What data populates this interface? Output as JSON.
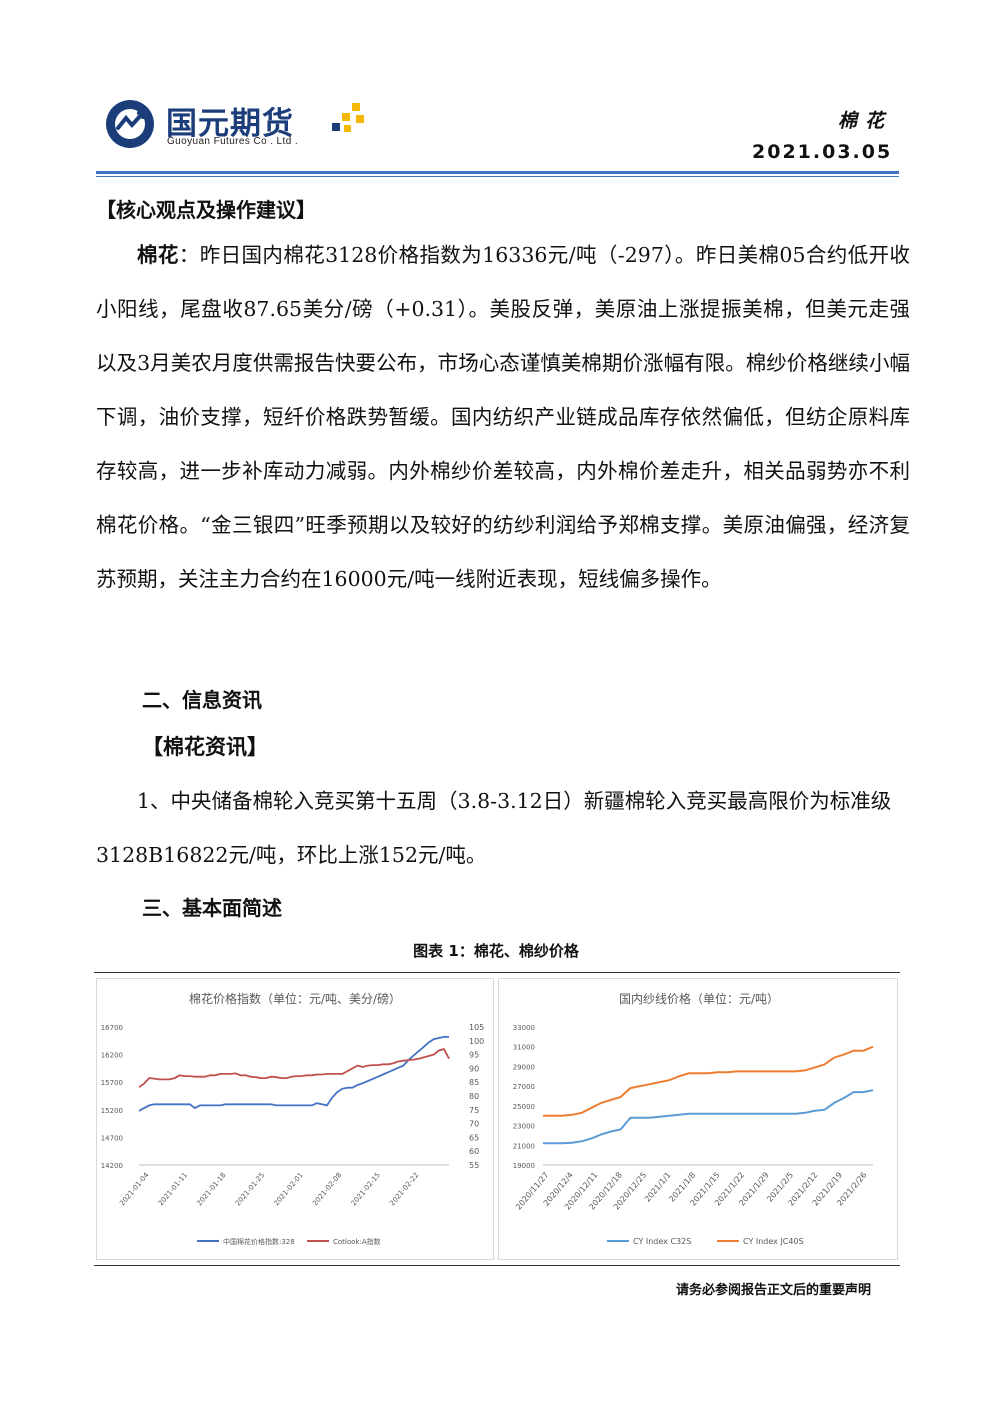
{
  "header": {
    "company_cn": "国元期货",
    "company_en": "Guoyuan Futures Co . Ltd .",
    "product": "棉花",
    "date": "2021.03.05",
    "brand_color": "#1b3e7a",
    "accent_color": "#f5b800"
  },
  "section1": {
    "title": "【核心观点及操作建议】",
    "lead": "棉花",
    "body": "：昨日国内棉花3128价格指数为16336元/吨（-297）。昨日美棉05合约低开收小阳线，尾盘收87.65美分/磅（+0.31）。美股反弹，美原油上涨提振美棉，但美元走强以及3月美农月度供需报告快要公布，市场心态谨慎美棉期价涨幅有限。棉纱价格继续小幅下调，油价支撑，短纤价格跌势暂缓。国内纺织产业链成品库存依然偏低，但纺企原料库存较高，进一步补库动力减弱。内外棉纱价差较高，内外棉价差走升，相关品弱势亦不利棉花价格。“金三银四”旺季预期以及较好的纺纱利润给予郑棉支撑。美原油偏强，经济复苏预期，关注主力合约在16000元/吨一线附近表现，短线偏多操作。"
  },
  "section2": {
    "title": "二、信息资讯",
    "subtitle": "【棉花资讯】",
    "item1": "1、中央储备棉轮入竞买第十五周（3.8-3.12日）新疆棉轮入竞买最高限价为标准级3128B16822元/吨，环比上涨152元/吨。"
  },
  "section3": {
    "title": "三、基本面简述"
  },
  "figure_caption": "图表 1：棉花、棉纱价格",
  "footer": "请务必参阅报告正文后的重要声明",
  "chart_data": [
    {
      "type": "line",
      "title": "棉花价格指数（单位：元/吨、美分/磅）",
      "x_ticks": [
        "2021-01-04",
        "2021-01-11",
        "2021-01-18",
        "2021-01-25",
        "2021-02-01",
        "2021-02-08",
        "2021-02-15",
        "2021-02-22"
      ],
      "ylim_left": [
        14200,
        16700
      ],
      "y_ticks_left": [
        "16700",
        "16200",
        "15700",
        "15200",
        "14700",
        "14200"
      ],
      "ylim_right": [
        55,
        105
      ],
      "y_ticks_right": [
        "105",
        "100",
        "95",
        "90",
        "85",
        "80",
        "75",
        "70",
        "65",
        "60",
        "55"
      ],
      "series": [
        {
          "name": "中国棉花价格指数:328",
          "axis": "left",
          "color": "#4472c4",
          "values": [
            15180,
            15230,
            15280,
            15300,
            15300,
            15300,
            15300,
            15300,
            15300,
            15300,
            15300,
            15230,
            15280,
            15280,
            15280,
            15280,
            15280,
            15300,
            15300,
            15300,
            15300,
            15300,
            15300,
            15300,
            15300,
            15300,
            15300,
            15280,
            15280,
            15280,
            15280,
            15280,
            15280,
            15280,
            15280,
            15320,
            15300,
            15280,
            15420,
            15520,
            15580,
            15600,
            15600,
            15650,
            15680,
            15720,
            15760,
            15800,
            15840,
            15880,
            15920,
            15960,
            16000,
            16100,
            16180,
            16260,
            16340,
            16420,
            16480,
            16500,
            16520,
            16520
          ]
        },
        {
          "name": "Cotlook:A指数",
          "axis": "right",
          "color": "#c0504d",
          "values": [
            83.2,
            84.5,
            86.5,
            86.3,
            86.0,
            86.0,
            86.0,
            86.5,
            87.5,
            87.2,
            87.2,
            87.0,
            87.0,
            87.0,
            87.5,
            87.5,
            88.0,
            88.0,
            88.0,
            88.2,
            87.5,
            87.5,
            87.0,
            86.8,
            86.5,
            86.5,
            87.0,
            86.8,
            86.5,
            86.5,
            87.0,
            87.2,
            87.2,
            87.5,
            87.5,
            87.8,
            87.8,
            88.0,
            88.0,
            88.0,
            88.0,
            89.0,
            90.0,
            91.0,
            90.5,
            91.0,
            91.2,
            91.2,
            91.5,
            91.5,
            91.8,
            92.5,
            92.8,
            93.0,
            93.2,
            93.5,
            94.0,
            94.5,
            95.0,
            96.5,
            97.0,
            93.5
          ]
        }
      ]
    },
    {
      "type": "line",
      "title": "国内纱线价格（单位：元/吨）",
      "x_ticks": [
        "2020/11/27",
        "2020/12/4",
        "2020/12/11",
        "2020/12/18",
        "2020/12/25",
        "2021/1/1",
        "2021/1/8",
        "2021/1/15",
        "2021/1/22",
        "2021/1/29",
        "2021/2/5",
        "2021/2/12",
        "2021/2/19",
        "2021/2/26"
      ],
      "ylim": [
        19000,
        33000
      ],
      "y_ticks": [
        "33000",
        "31000",
        "29000",
        "27000",
        "25000",
        "23000",
        "21000",
        "19000"
      ],
      "series": [
        {
          "name": "CY Index C32S",
          "color": "#5b9bd5",
          "values": [
            21200,
            21200,
            21200,
            21250,
            21400,
            21700,
            22100,
            22400,
            22600,
            23800,
            23800,
            23800,
            23900,
            24000,
            24100,
            24200,
            24200,
            24200,
            24200,
            24200,
            24200,
            24200,
            24200,
            24200,
            24200,
            24200,
            24200,
            24300,
            24500,
            24600,
            25300,
            25800,
            26400,
            26400,
            26600
          ]
        },
        {
          "name": "CY Index JC40S",
          "color": "#ed7d31",
          "values": [
            24000,
            24000,
            24000,
            24100,
            24300,
            24800,
            25300,
            25600,
            25900,
            26800,
            27000,
            27200,
            27400,
            27600,
            28000,
            28300,
            28300,
            28300,
            28400,
            28400,
            28500,
            28500,
            28500,
            28500,
            28500,
            28500,
            28500,
            28600,
            28900,
            29200,
            29900,
            30200,
            30600,
            30600,
            31000
          ]
        }
      ]
    }
  ]
}
